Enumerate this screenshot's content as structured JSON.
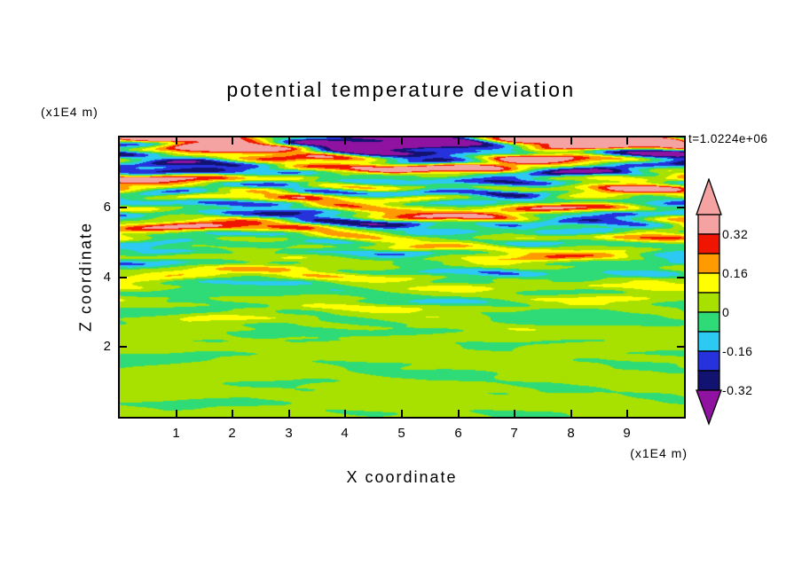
{
  "chart_data": {
    "type": "heatmap",
    "title": "potential temperature deviation",
    "time_label": "t=1.0224e+06",
    "x_axis": {
      "label": "X coordinate",
      "unit": "(x1E4 m)",
      "range": [
        0,
        10
      ],
      "ticks": [
        1,
        2,
        3,
        4,
        5,
        6,
        7,
        8,
        9
      ]
    },
    "z_axis": {
      "label": "Z coordinate",
      "unit": "(x1E4 m)",
      "range": [
        0,
        8
      ],
      "ticks": [
        2,
        4,
        6
      ]
    },
    "colorbar": {
      "labels": [
        "0.32",
        "0.16",
        "0",
        "-0.16",
        "-0.32"
      ],
      "levels_top_to_bottom": [
        0.4,
        0.32,
        0.24,
        0.16,
        0.08,
        0,
        -0.08,
        -0.16,
        -0.24,
        -0.32
      ],
      "segment_colors_top_to_bottom": [
        "#f4a2a2",
        "#f01500",
        "#ff9b00",
        "#ffff00",
        "#a8e000",
        "#2edb76",
        "#2cc9f2",
        "#2633dd",
        "#121270"
      ],
      "above_color": "#f4a2a2",
      "below_color": "#8f13a0"
    },
    "field_structure": {
      "description": "horizontally layered turbulent temperature-deviation field; near-zero smooth green region below z=2x1E4 m, thin alternating stripes of growing amplitude through mid-levels, saturated red/pink/navy/purple wave layers in upper third",
      "amplitude_profile_zfrac": [
        [
          0.0,
          0.05
        ],
        [
          0.26,
          0.05
        ],
        [
          0.52,
          0.22
        ],
        [
          1.0,
          0.68
        ]
      ],
      "bottom_bias": 0.015
    }
  }
}
